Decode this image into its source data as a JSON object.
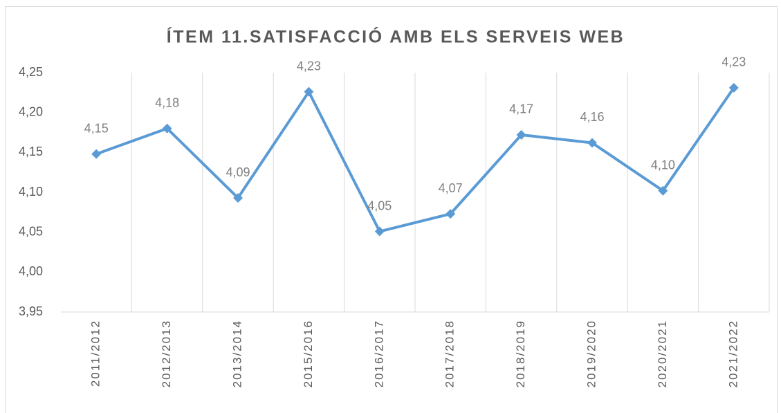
{
  "chart_data": {
    "type": "line",
    "title": "ÍTEM 11.SATISFACCIÓ AMB ELS SERVEIS WEB",
    "categories": [
      "2011/2012",
      "2012/2013",
      "2013/2014",
      "2015/2016",
      "2016/2017",
      "2017/2018",
      "2018/2019",
      "2019/2020",
      "2020/2021",
      "2021/2022"
    ],
    "values": [
      4.148,
      4.18,
      4.093,
      4.226,
      4.051,
      4.073,
      4.172,
      4.162,
      4.102,
      4.231
    ],
    "value_labels": [
      "4,15",
      "4,18",
      "4,09",
      "4,23",
      "4,05",
      "4,07",
      "4,17",
      "4,16",
      "4,10",
      "4,23"
    ],
    "color": "#5b9bd5",
    "ylim": [
      3.95,
      4.25
    ],
    "yticks": [
      {
        "value": 3.95,
        "label": "3,95"
      },
      {
        "value": 4.0,
        "label": "4,00"
      },
      {
        "value": 4.05,
        "label": "4,05"
      },
      {
        "value": 4.1,
        "label": "4,10"
      },
      {
        "value": 4.15,
        "label": "4,15"
      },
      {
        "value": 4.2,
        "label": "4,20"
      },
      {
        "value": 4.25,
        "label": "4,25"
      }
    ],
    "grid": "x"
  }
}
